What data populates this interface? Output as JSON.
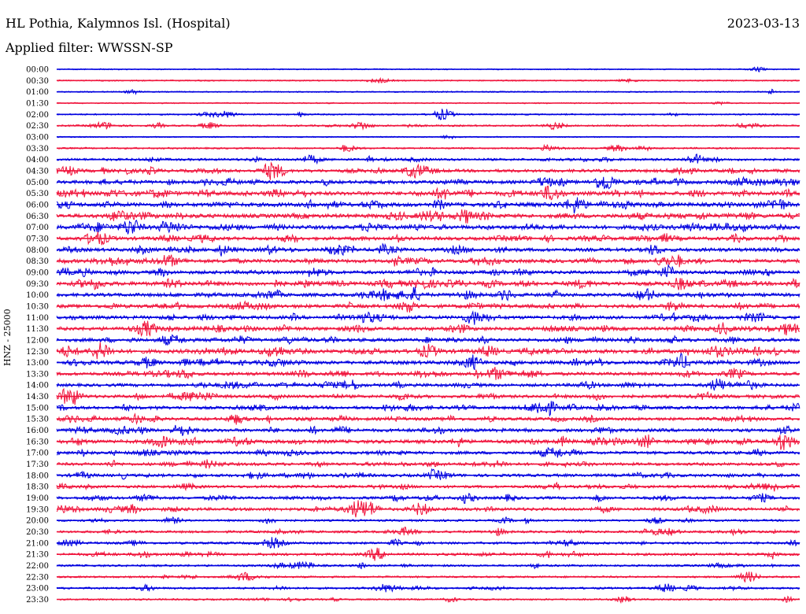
{
  "header": {
    "station": "HL Pothia, Kalymnos Isl. (Hospital)",
    "date": "2023-03-13",
    "filter": "Applied filter: WWSSN-SP",
    "channel_label": "HNZ - 25000"
  },
  "chart_data": {
    "type": "line",
    "title": "HL Pothia, Kalymnos Isl. (Hospital)",
    "subtitle": "Applied filter: WWSSN-SP",
    "ylabel": "HNZ - 25000",
    "xlabel": "",
    "series_colors": [
      "#0000e0",
      "#f0143c"
    ],
    "grid": false,
    "legend": "none",
    "rows": [
      {
        "label": "00:00",
        "activity": 0.05
      },
      {
        "label": "00:30",
        "activity": 0.08
      },
      {
        "label": "01:00",
        "activity": 0.08
      },
      {
        "label": "01:30",
        "activity": 0.06
      },
      {
        "label": "02:00",
        "activity": 0.15
      },
      {
        "label": "02:30",
        "activity": 0.2
      },
      {
        "label": "03:00",
        "activity": 0.05
      },
      {
        "label": "03:30",
        "activity": 0.2
      },
      {
        "label": "04:00",
        "activity": 0.4
      },
      {
        "label": "04:30",
        "activity": 0.6
      },
      {
        "label": "05:00",
        "activity": 0.7
      },
      {
        "label": "05:30",
        "activity": 0.8
      },
      {
        "label": "06:00",
        "activity": 0.85
      },
      {
        "label": "06:30",
        "activity": 0.85
      },
      {
        "label": "07:00",
        "activity": 0.85
      },
      {
        "label": "07:30",
        "activity": 0.7
      },
      {
        "label": "08:00",
        "activity": 0.7
      },
      {
        "label": "08:30",
        "activity": 0.75
      },
      {
        "label": "09:00",
        "activity": 0.7
      },
      {
        "label": "09:30",
        "activity": 0.85
      },
      {
        "label": "10:00",
        "activity": 0.7
      },
      {
        "label": "10:30",
        "activity": 0.75
      },
      {
        "label": "11:00",
        "activity": 0.7
      },
      {
        "label": "11:30",
        "activity": 0.75
      },
      {
        "label": "12:00",
        "activity": 0.7
      },
      {
        "label": "12:30",
        "activity": 0.85
      },
      {
        "label": "13:00",
        "activity": 0.75
      },
      {
        "label": "13:30",
        "activity": 0.65
      },
      {
        "label": "14:00",
        "activity": 0.6
      },
      {
        "label": "14:30",
        "activity": 0.6
      },
      {
        "label": "15:00",
        "activity": 0.6
      },
      {
        "label": "15:30",
        "activity": 0.6
      },
      {
        "label": "16:00",
        "activity": 0.65
      },
      {
        "label": "16:30",
        "activity": 0.75
      },
      {
        "label": "17:00",
        "activity": 0.6
      },
      {
        "label": "17:30",
        "activity": 0.55
      },
      {
        "label": "18:00",
        "activity": 0.55
      },
      {
        "label": "18:30",
        "activity": 0.5
      },
      {
        "label": "19:00",
        "activity": 0.5
      },
      {
        "label": "19:30",
        "activity": 0.6
      },
      {
        "label": "20:00",
        "activity": 0.3
      },
      {
        "label": "20:30",
        "activity": 0.4
      },
      {
        "label": "21:00",
        "activity": 0.4
      },
      {
        "label": "21:30",
        "activity": 0.45
      },
      {
        "label": "22:00",
        "activity": 0.3
      },
      {
        "label": "22:30",
        "activity": 0.25
      },
      {
        "label": "23:00",
        "activity": 0.3
      },
      {
        "label": "23:30",
        "activity": 0.2
      }
    ],
    "events": [
      {
        "row": "02:00",
        "t": 0.52,
        "amp": 1.0
      },
      {
        "row": "02:30",
        "t": 0.41,
        "amp": 0.7
      },
      {
        "row": "02:30",
        "t": 0.67,
        "amp": 0.6
      },
      {
        "row": "04:00",
        "t": 0.86,
        "amp": 0.8
      },
      {
        "row": "04:30",
        "t": 0.29,
        "amp": 1.6
      },
      {
        "row": "04:30",
        "t": 0.48,
        "amp": 1.0
      },
      {
        "row": "05:00",
        "t": 0.74,
        "amp": 1.4
      },
      {
        "row": "05:30",
        "t": 0.52,
        "amp": 0.9
      },
      {
        "row": "05:30",
        "t": 0.66,
        "amp": 0.8
      },
      {
        "row": "06:00",
        "t": 0.7,
        "amp": 1.0
      },
      {
        "row": "06:00",
        "t": 0.97,
        "amp": 1.0
      },
      {
        "row": "06:30",
        "t": 0.55,
        "amp": 1.1
      },
      {
        "row": "07:00",
        "t": 0.1,
        "amp": 1.4
      },
      {
        "row": "08:00",
        "t": 0.38,
        "amp": 0.9
      },
      {
        "row": "08:30",
        "t": 0.15,
        "amp": 1.0
      },
      {
        "row": "09:30",
        "t": 0.84,
        "amp": 0.9
      },
      {
        "row": "10:00",
        "t": 0.48,
        "amp": 1.0
      },
      {
        "row": "11:00",
        "t": 0.56,
        "amp": 0.9
      },
      {
        "row": "11:30",
        "t": 0.12,
        "amp": 1.2
      },
      {
        "row": "12:30",
        "t": 0.06,
        "amp": 1.6
      },
      {
        "row": "12:30",
        "t": 0.5,
        "amp": 1.0
      },
      {
        "row": "13:00",
        "t": 0.56,
        "amp": 1.0
      },
      {
        "row": "13:00",
        "t": 0.84,
        "amp": 1.2
      },
      {
        "row": "13:30",
        "t": 0.59,
        "amp": 1.0
      },
      {
        "row": "14:00",
        "t": 0.89,
        "amp": 1.0
      },
      {
        "row": "14:30",
        "t": 0.02,
        "amp": 1.2
      },
      {
        "row": "15:00",
        "t": 0.66,
        "amp": 1.2
      },
      {
        "row": "16:30",
        "t": 0.14,
        "amp": 1.0
      },
      {
        "row": "16:30",
        "t": 0.98,
        "amp": 1.4
      },
      {
        "row": "19:30",
        "t": 0.42,
        "amp": 1.2
      },
      {
        "row": "19:30",
        "t": 0.49,
        "amp": 1.0
      },
      {
        "row": "21:30",
        "t": 0.43,
        "amp": 1.0
      },
      {
        "row": "23:00",
        "t": 0.82,
        "amp": 0.7
      }
    ]
  }
}
